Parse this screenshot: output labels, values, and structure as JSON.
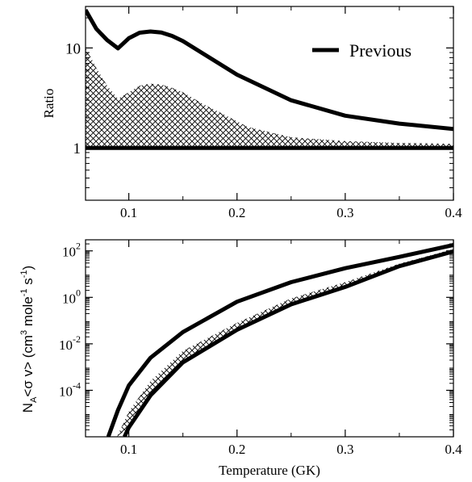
{
  "chart_data": [
    {
      "type": "area",
      "ylabel": "Ratio",
      "yscale": "log",
      "xlim": [
        0.06,
        0.4
      ],
      "ylim": [
        0.3,
        26
      ],
      "x_ticks": [
        {
          "value": 0.1,
          "label": "0.1"
        },
        {
          "value": 0.2,
          "label": "0.2"
        },
        {
          "value": 0.3,
          "label": "0.3"
        },
        {
          "value": 0.4,
          "label": "0.4"
        }
      ],
      "y_ticks": [
        {
          "value": 1,
          "label": "1"
        },
        {
          "value": 10,
          "label": "10"
        }
      ],
      "legend": {
        "placement": "top-right",
        "entries": [
          "Previous"
        ]
      },
      "grid": false,
      "series": [
        {
          "name": "Previous",
          "style": "solid",
          "color": "#000000",
          "x": [
            0.06,
            0.07,
            0.08,
            0.09,
            0.1,
            0.11,
            0.12,
            0.13,
            0.14,
            0.15,
            0.17,
            0.2,
            0.25,
            0.3,
            0.35,
            0.4
          ],
          "y": [
            24,
            15.5,
            12,
            9.9,
            12.5,
            14.2,
            14.6,
            14.3,
            13.2,
            11.7,
            8.6,
            5.4,
            3.0,
            2.1,
            1.75,
            1.55
          ]
        },
        {
          "style": "hatched-band",
          "x": [
            0.06,
            0.065,
            0.07,
            0.08,
            0.09,
            0.1,
            0.11,
            0.12,
            0.13,
            0.14,
            0.15,
            0.17,
            0.19,
            0.2,
            0.21,
            0.25,
            0.3,
            0.35,
            0.4
          ],
          "y_low": [
            1,
            1,
            1,
            1,
            1,
            1,
            1,
            1,
            1,
            1,
            1,
            1,
            1,
            1,
            1,
            1,
            1,
            1,
            1
          ],
          "y_high": [
            10,
            8,
            6.3,
            4.2,
            3.1,
            3.6,
            4.2,
            4.4,
            4.3,
            4.0,
            3.6,
            2.7,
            2.1,
            1.85,
            1.62,
            1.28,
            1.17,
            1.12,
            1.1
          ]
        },
        {
          "style": "solid",
          "color": "#000000",
          "x": [
            0.06,
            0.4
          ],
          "y": [
            1,
            1
          ]
        }
      ]
    },
    {
      "type": "line",
      "xlabel": "Temperature (GK)",
      "ylabel": "N_A<σ v> (cm^3 mole^-1 s^-1)",
      "yscale": "log",
      "xlim": [
        0.06,
        0.4
      ],
      "ylim": [
        1e-06,
        300
      ],
      "x_ticks": [
        {
          "value": 0.1,
          "label": "0.1"
        },
        {
          "value": 0.2,
          "label": "0.2"
        },
        {
          "value": 0.3,
          "label": "0.3"
        },
        {
          "value": 0.4,
          "label": "0.4"
        }
      ],
      "y_ticks": [
        {
          "value": 0.0001,
          "base": "10",
          "exponent": "-4"
        },
        {
          "value": 0.01,
          "base": "10",
          "exponent": "-2"
        },
        {
          "value": 1,
          "base": "10",
          "exponent": "0"
        },
        {
          "value": 100,
          "base": "10",
          "exponent": "2"
        }
      ],
      "grid": false,
      "series": [
        {
          "style": "solid",
          "color": "#000000",
          "x": [
            0.081,
            0.09,
            0.1,
            0.12,
            0.15,
            0.2,
            0.25,
            0.3,
            0.35,
            0.4
          ],
          "y": [
            1e-06,
            1.4e-05,
            0.00016,
            0.0025,
            0.032,
            0.65,
            4.5,
            18,
            55,
            180
          ]
        },
        {
          "style": "solid",
          "color": "#000000",
          "x": [
            0.096,
            0.1,
            0.12,
            0.15,
            0.2,
            0.25,
            0.3,
            0.35,
            0.4
          ],
          "y": [
            1e-06,
            2.5e-06,
            6e-05,
            0.0016,
            0.04,
            0.5,
            2.8,
            22,
            95
          ]
        },
        {
          "style": "hatched-band",
          "x": [
            0.089,
            0.1,
            0.12,
            0.15,
            0.2,
            0.25,
            0.3,
            0.35,
            0.4
          ],
          "y_low": [
            1e-06,
            2.5e-06,
            6e-05,
            0.0016,
            0.04,
            0.5,
            2.8,
            22,
            95
          ],
          "y_high": [
            1e-06,
            1.2e-05,
            0.00025,
            0.005,
            0.08,
            0.9,
            4.5,
            28,
            120
          ]
        }
      ]
    }
  ]
}
